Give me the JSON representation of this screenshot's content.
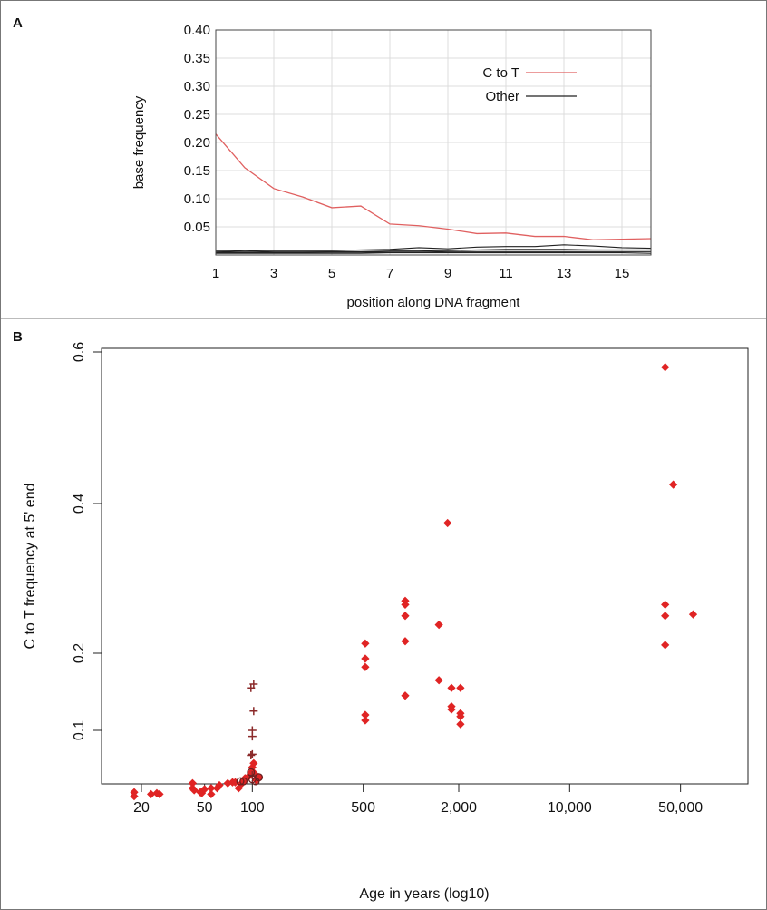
{
  "chart_data": [
    {
      "panel_label": "A",
      "type": "line",
      "xlabel": "position along DNA fragment",
      "ylabel": "base frequency",
      "xlim": [
        1,
        16
      ],
      "ylim": [
        0,
        0.4
      ],
      "xticks": [
        1,
        3,
        5,
        7,
        9,
        11,
        13,
        15
      ],
      "yticks": [
        0.05,
        0.1,
        0.15,
        0.2,
        0.25,
        0.3,
        0.35,
        0.4
      ],
      "ytick_labels": [
        "0.05",
        "0.10",
        "0.15",
        "0.20",
        "0.25",
        "0.30",
        "0.35",
        "0.40"
      ],
      "grid": true,
      "legend_position": "top-right",
      "x": [
        1,
        2,
        3,
        4,
        5,
        6,
        7,
        8,
        9,
        10,
        11,
        12,
        13,
        14,
        15,
        16
      ],
      "series": [
        {
          "name": "C to T",
          "color": "#e06060",
          "values": [
            0.215,
            0.155,
            0.118,
            0.103,
            0.084,
            0.087,
            0.055,
            0.052,
            0.046,
            0.038,
            0.039,
            0.033,
            0.033,
            0.027,
            0.028,
            0.029
          ]
        },
        {
          "name": "Other",
          "color": "#222222",
          "values": [
            0.008,
            0.007,
            0.008,
            0.008,
            0.008,
            0.009,
            0.01,
            0.013,
            0.011,
            0.014,
            0.015,
            0.015,
            0.018,
            0.016,
            0.013,
            0.012
          ]
        },
        {
          "name": "",
          "color": "#222222",
          "values": [
            0.006,
            0.005,
            0.006,
            0.006,
            0.006,
            0.006,
            0.007,
            0.007,
            0.008,
            0.009,
            0.01,
            0.01,
            0.01,
            0.009,
            0.009,
            0.009
          ]
        },
        {
          "name": "",
          "color": "#222222",
          "values": [
            0.004,
            0.004,
            0.004,
            0.004,
            0.005,
            0.005,
            0.005,
            0.005,
            0.006,
            0.006,
            0.006,
            0.006,
            0.006,
            0.006,
            0.006,
            0.006
          ]
        },
        {
          "name": "",
          "color": "#222222",
          "values": [
            0.003,
            0.003,
            0.003,
            0.003,
            0.003,
            0.003,
            0.004,
            0.004,
            0.004,
            0.004,
            0.004,
            0.004,
            0.004,
            0.004,
            0.004,
            0.003
          ]
        }
      ]
    },
    {
      "panel_label": "B",
      "type": "scatter",
      "xlabel": "Age in years (log10)",
      "ylabel": "C to T frequency at 5' end",
      "xscale": "log",
      "xlim": [
        10,
        150000
      ],
      "ylim": [
        0.03,
        0.6
      ],
      "xticks": [
        20,
        50,
        100,
        500,
        2000,
        10000,
        50000
      ],
      "xtick_labels": [
        "20",
        "50",
        "100",
        "500",
        "2,000",
        "10,000",
        "50,000"
      ],
      "yticks": [
        0.1,
        0.2,
        0.4,
        0.6
      ],
      "ytick_labels": [
        "0.1",
        "0.2",
        "0.4",
        "0.6"
      ],
      "series": [
        {
          "marker": "diamond",
          "color": "#e02424",
          "points": [
            [
              18,
              0.038
            ],
            [
              18,
              0.034
            ],
            [
              23,
              0.036
            ],
            [
              25,
              0.037
            ],
            [
              26,
              0.036
            ],
            [
              42,
              0.047
            ],
            [
              42,
              0.042
            ],
            [
              43,
              0.04
            ],
            [
              47,
              0.038
            ],
            [
              48,
              0.037
            ],
            [
              50,
              0.041
            ],
            [
              55,
              0.036
            ],
            [
              55,
              0.042
            ],
            [
              60,
              0.042
            ],
            [
              62,
              0.045
            ],
            [
              70,
              0.047
            ],
            [
              75,
              0.048
            ],
            [
              78,
              0.048
            ],
            [
              82,
              0.042
            ],
            [
              85,
              0.046
            ],
            [
              88,
              0.049
            ],
            [
              90,
              0.052
            ],
            [
              95,
              0.054
            ],
            [
              98,
              0.057
            ],
            [
              100,
              0.059
            ],
            [
              100,
              0.063
            ],
            [
              102,
              0.067
            ],
            [
              104,
              0.056
            ],
            [
              106,
              0.05
            ],
            [
              110,
              0.053
            ],
            [
              515,
              0.213
            ],
            [
              515,
              0.193
            ],
            [
              515,
              0.182
            ],
            [
              515,
              0.12
            ],
            [
              515,
              0.113
            ],
            [
              920,
              0.27
            ],
            [
              920,
              0.265
            ],
            [
              920,
              0.25
            ],
            [
              920,
              0.216
            ],
            [
              920,
              0.145
            ],
            [
              1500,
              0.238
            ],
            [
              1500,
              0.165
            ],
            [
              1700,
              0.374
            ],
            [
              1800,
              0.155
            ],
            [
              1800,
              0.131
            ],
            [
              1800,
              0.127
            ],
            [
              2050,
              0.155
            ],
            [
              2050,
              0.122
            ],
            [
              2050,
              0.118
            ],
            [
              2050,
              0.108
            ],
            [
              40000,
              0.58
            ],
            [
              40000,
              0.265
            ],
            [
              40000,
              0.25
            ],
            [
              40000,
              0.211
            ],
            [
              45000,
              0.425
            ],
            [
              60000,
              0.252
            ]
          ]
        },
        {
          "marker": "plus",
          "color": "#8b2a2a",
          "points": [
            [
              98,
              0.155
            ],
            [
              102,
              0.16
            ],
            [
              102,
              0.125
            ],
            [
              100,
              0.1
            ],
            [
              100,
              0.094
            ],
            [
              98,
              0.075
            ],
            [
              100,
              0.076
            ],
            [
              100,
              0.055
            ]
          ]
        },
        {
          "marker": "circle",
          "color": "#6b1f1f",
          "points": [
            [
              84,
              0.049
            ],
            [
              88,
              0.049
            ],
            [
              100,
              0.051
            ],
            [
              105,
              0.049
            ],
            [
              110,
              0.053
            ],
            [
              98,
              0.058
            ]
          ]
        }
      ]
    }
  ]
}
